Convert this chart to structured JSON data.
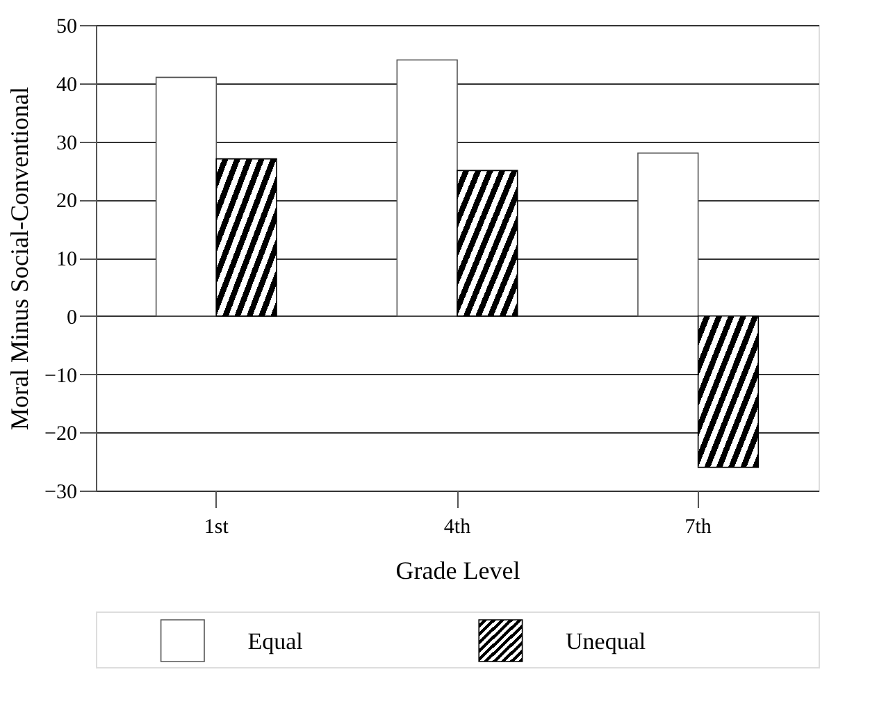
{
  "chart_data": {
    "type": "bar",
    "xlabel": "Grade Level",
    "ylabel": "Moral Minus Social-Conventional",
    "categories": [
      "1st",
      "4th",
      "7th"
    ],
    "series": [
      {
        "name": "Equal",
        "color": "#ffffff",
        "values": [
          41,
          44,
          28
        ]
      },
      {
        "name": "Unequal",
        "color": "#000000",
        "values": [
          27,
          25,
          -26
        ]
      }
    ],
    "ylim": [
      -30,
      50
    ],
    "yticks": [
      -30,
      -20,
      -10,
      0,
      10,
      20,
      30,
      40,
      50
    ],
    "grid": "y",
    "legend": "bottom"
  }
}
